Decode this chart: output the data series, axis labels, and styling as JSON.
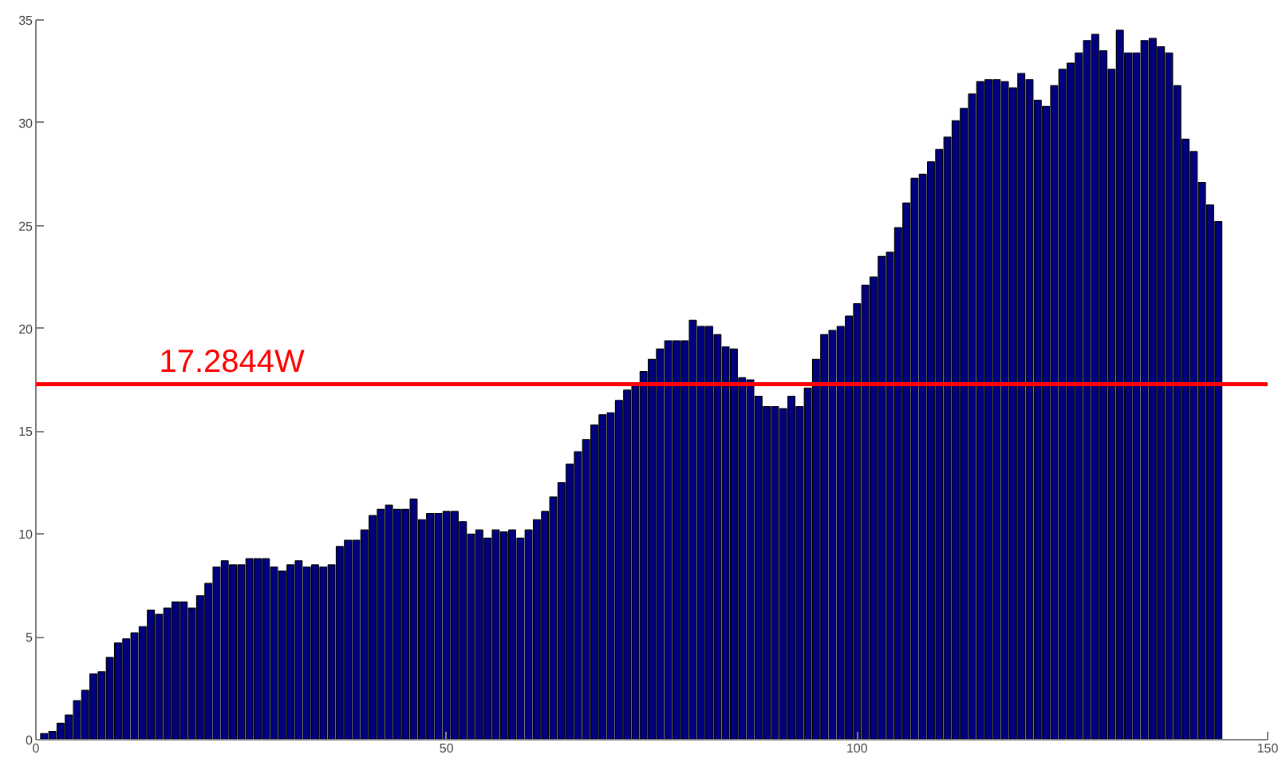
{
  "chart_data": {
    "type": "bar",
    "x": [
      1,
      2,
      3,
      4,
      5,
      6,
      7,
      8,
      9,
      10,
      11,
      12,
      13,
      14,
      15,
      16,
      17,
      18,
      19,
      20,
      21,
      22,
      23,
      24,
      25,
      26,
      27,
      28,
      29,
      30,
      31,
      32,
      33,
      34,
      35,
      36,
      37,
      38,
      39,
      40,
      41,
      42,
      43,
      44,
      45,
      46,
      47,
      48,
      49,
      50,
      51,
      52,
      53,
      54,
      55,
      56,
      57,
      58,
      59,
      60,
      61,
      62,
      63,
      64,
      65,
      66,
      67,
      68,
      69,
      70,
      71,
      72,
      73,
      74,
      75,
      76,
      77,
      78,
      79,
      80,
      81,
      82,
      83,
      84,
      85,
      86,
      87,
      88,
      89,
      90,
      91,
      92,
      93,
      94,
      95,
      96,
      97,
      98,
      99,
      100,
      101,
      102,
      103,
      104,
      105,
      106,
      107,
      108,
      109,
      110,
      111,
      112,
      113,
      114,
      115,
      116,
      117,
      118,
      119,
      120,
      121,
      122,
      123,
      124,
      125,
      126,
      127,
      128,
      129,
      130,
      131,
      132,
      133,
      134,
      135,
      136,
      137,
      138,
      139,
      140,
      141,
      142,
      143,
      144
    ],
    "values": [
      0.3,
      0.4,
      0.8,
      1.2,
      1.9,
      2.4,
      3.2,
      3.3,
      4.0,
      4.7,
      4.9,
      5.2,
      5.5,
      6.3,
      6.1,
      6.4,
      6.7,
      6.7,
      6.4,
      7.0,
      7.6,
      8.4,
      8.7,
      8.5,
      8.5,
      8.8,
      8.8,
      8.8,
      8.4,
      8.2,
      8.5,
      8.7,
      8.4,
      8.5,
      8.4,
      8.5,
      9.4,
      9.7,
      9.7,
      10.2,
      10.9,
      11.2,
      11.4,
      11.2,
      11.2,
      11.7,
      10.7,
      11.0,
      11.0,
      11.1,
      11.1,
      10.6,
      10.0,
      10.2,
      9.8,
      10.2,
      10.1,
      10.2,
      9.8,
      10.2,
      10.7,
      11.1,
      11.8,
      12.5,
      13.4,
      14.0,
      14.6,
      15.3,
      15.8,
      15.9,
      16.5,
      17.0,
      17.3,
      17.9,
      18.5,
      19.0,
      19.4,
      19.4,
      19.4,
      20.4,
      20.1,
      20.1,
      19.7,
      19.1,
      19.0,
      17.6,
      17.5,
      16.7,
      16.2,
      16.2,
      16.1,
      16.7,
      16.2,
      17.1,
      18.5,
      19.7,
      19.9,
      20.1,
      20.6,
      21.2,
      22.1,
      22.5,
      23.5,
      23.7,
      24.9,
      26.1,
      27.3,
      27.5,
      28.1,
      28.7,
      29.3,
      30.1,
      30.7,
      31.4,
      32.0,
      32.1,
      32.1,
      32.0,
      31.7,
      32.4,
      32.1,
      31.1,
      30.8,
      31.8,
      32.6,
      32.9,
      33.4,
      34.0,
      34.3,
      33.5,
      32.6,
      34.5,
      33.4,
      33.4,
      34.0,
      34.1,
      33.7,
      33.4,
      31.8,
      29.2,
      28.6,
      27.1,
      26.0,
      25.2
    ],
    "color": "#000080",
    "xlim": [
      0,
      150
    ],
    "xticks": [
      0,
      50,
      100,
      150
    ],
    "ylim": [
      0,
      35
    ],
    "yticks": [
      0,
      5,
      10,
      15,
      20,
      25,
      30,
      35
    ],
    "grid": false,
    "ref_lines": [
      {
        "axis": "y",
        "value": 17.2844,
        "label": "17.2844W",
        "color": "#ff0000",
        "line_style": "solid"
      }
    ]
  }
}
